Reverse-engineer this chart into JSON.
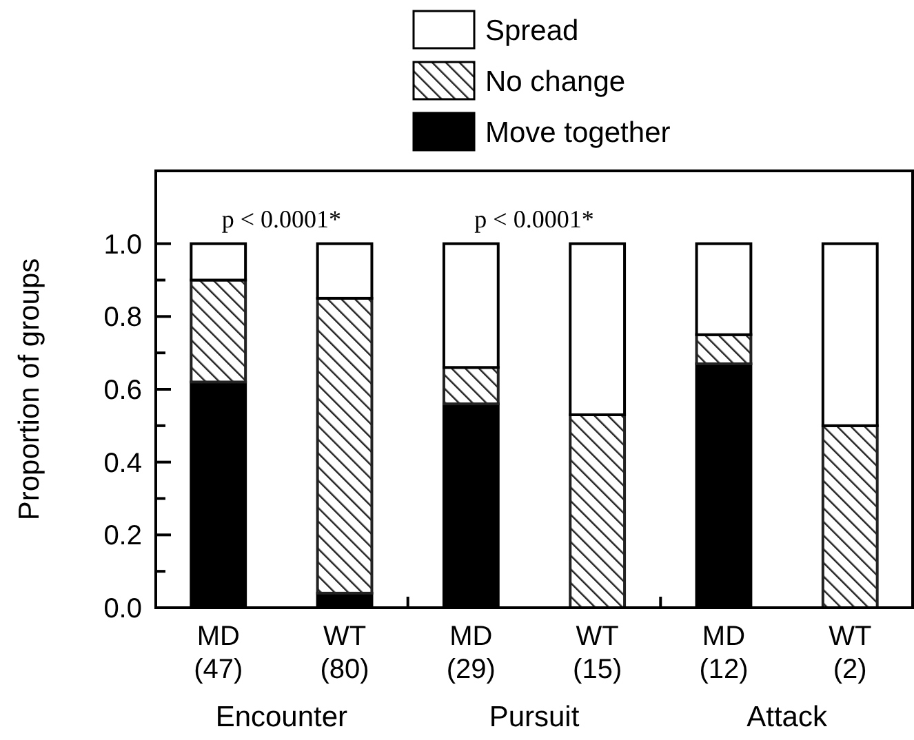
{
  "chart_data": {
    "type": "bar",
    "stacked": true,
    "ylabel": "Proportion of groups",
    "categories": [
      "MD (47)",
      "WT (80)",
      "MD (29)",
      "WT (15)",
      "MD (12)",
      "WT (2)"
    ],
    "series": [
      {
        "name": "Move together",
        "color": "#000000",
        "values": [
          0.62,
          0.04,
          0.56,
          0,
          0.67,
          0
        ]
      },
      {
        "name": "No change",
        "color": "#222222",
        "values": [
          0.28,
          0.81,
          0.1,
          0.53,
          0.08,
          0.5
        ]
      },
      {
        "name": "Spread",
        "color": "#ffffff",
        "values": [
          0.1,
          0.15,
          0.34,
          0.47,
          0.25,
          0.5
        ]
      }
    ],
    "ylim": [
      0,
      1.2
    ],
    "yticks": [
      {
        "value": 0,
        "label": "0.0"
      },
      {
        "value": 0.1,
        "label": null
      },
      {
        "value": 0.2,
        "label": "0.2"
      },
      {
        "value": 0.3,
        "label": null
      },
      {
        "value": 0.4,
        "label": "0.4"
      },
      {
        "value": 0.5,
        "label": null
      },
      {
        "value": 0.6,
        "label": "0.6"
      },
      {
        "value": 0.7,
        "label": null
      },
      {
        "value": 0.8,
        "label": "0.8"
      },
      {
        "value": 0.9,
        "label": null
      },
      {
        "value": 1,
        "label": "1.0"
      }
    ],
    "annotations": [
      "p < 0.0001*",
      "p < 0.0001*",
      "Encounter",
      "Pursuit",
      "Attack"
    ],
    "legend": "top",
    "grid": false
  }
}
